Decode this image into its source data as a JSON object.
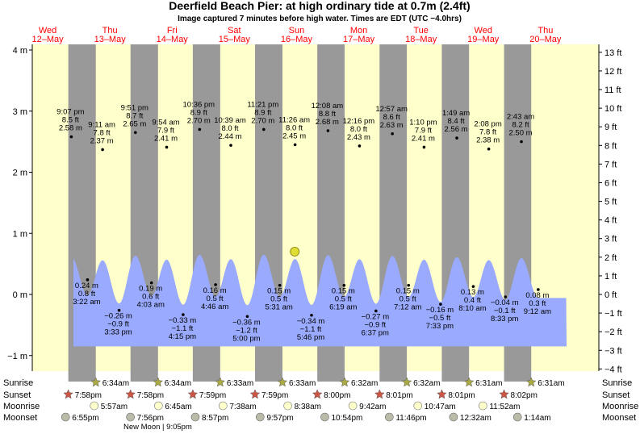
{
  "chart_data": {
    "type": "area",
    "title": "Deerfield Beach Pier: at high  ordinary tide at 0.7m (2.4ft)",
    "subtitle": "Image captured 7 minutes before high water. Times are EDT (UTC −4.0hrs)",
    "days": [
      {
        "dow": "Wed",
        "date": "12–May"
      },
      {
        "dow": "Thu",
        "date": "13–May"
      },
      {
        "dow": "Fri",
        "date": "14–May"
      },
      {
        "dow": "Sat",
        "date": "15–May"
      },
      {
        "dow": "Sun",
        "date": "16–May"
      },
      {
        "dow": "Mon",
        "date": "17–May"
      },
      {
        "dow": "Tue",
        "date": "18–May"
      },
      {
        "dow": "Wed",
        "date": "19–May"
      },
      {
        "dow": "Thu",
        "date": "20–May"
      }
    ],
    "y_left": {
      "unit": "m",
      "min": -1.2,
      "max": 4.0,
      "ticks": [
        "−1 m",
        "0 m",
        "1 m",
        "2 m",
        "3 m",
        "4 m"
      ],
      "tick_values": [
        -1,
        0,
        1,
        2,
        3,
        4
      ]
    },
    "y_right": {
      "unit": "ft",
      "ticks": [
        "−4 ft",
        "−3 ft",
        "−2 ft",
        "−1 ft",
        "0 ft",
        "1 ft",
        "2 ft",
        "3 ft",
        "4 ft",
        "5 ft",
        "6 ft",
        "7 ft",
        "8 ft",
        "9 ft",
        "10 ft",
        "11 ft",
        "12 ft",
        "13 ft"
      ],
      "tick_values": [
        -4,
        -3,
        -2,
        -1,
        0,
        1,
        2,
        3,
        4,
        5,
        6,
        7,
        8,
        9,
        10,
        11,
        12,
        13
      ]
    },
    "big_tides": [
      {
        "time": "9:07 pm",
        "ft": "8.5 ft",
        "m": "2.58 m",
        "day": 0,
        "hour": 21.12,
        "value": 2.58
      },
      {
        "time": "9:11 am",
        "ft": "7.8 ft",
        "m": "2.37 m",
        "day": 1,
        "hour": 9.18,
        "value": 2.37
      },
      {
        "time": "9:51 pm",
        "ft": "8.7 ft",
        "m": "2.65 m",
        "day": 1,
        "hour": 21.85,
        "value": 2.65
      },
      {
        "time": "9:54 am",
        "ft": "7.9 ft",
        "m": "2.41 m",
        "day": 2,
        "hour": 9.9,
        "value": 2.41
      },
      {
        "time": "10:36 pm",
        "ft": "8.9 ft",
        "m": "2.70 m",
        "day": 2,
        "hour": 22.6,
        "value": 2.7
      },
      {
        "time": "10:39 am",
        "ft": "8.0 ft",
        "m": "2.44 m",
        "day": 3,
        "hour": 10.65,
        "value": 2.44
      },
      {
        "time": "11:21 pm",
        "ft": "8.9 ft",
        "m": "2.70 m",
        "day": 3,
        "hour": 23.35,
        "value": 2.7
      },
      {
        "time": "11:26 am",
        "ft": "8.0 ft",
        "m": "2.45 m",
        "day": 4,
        "hour": 11.43,
        "value": 2.45
      },
      {
        "time": "12:08 am",
        "ft": "8.8 ft",
        "m": "2.68 m",
        "day": 5,
        "hour": 0.13,
        "value": 2.68
      },
      {
        "time": "12:16 pm",
        "ft": "8.0 ft",
        "m": "2.43 m",
        "day": 5,
        "hour": 12.27,
        "value": 2.43
      },
      {
        "time": "12:57 am",
        "ft": "8.6 ft",
        "m": "2.63 m",
        "day": 6,
        "hour": 0.95,
        "value": 2.63
      },
      {
        "time": "1:10 pm",
        "ft": "7.9 ft",
        "m": "2.41 m",
        "day": 6,
        "hour": 13.17,
        "value": 2.41
      },
      {
        "time": "1:49 am",
        "ft": "8.4 ft",
        "m": "2.56 m",
        "day": 7,
        "hour": 1.82,
        "value": 2.56
      },
      {
        "time": "2:08 pm",
        "ft": "7.8 ft",
        "m": "2.38 m",
        "day": 7,
        "hour": 14.13,
        "value": 2.38
      },
      {
        "time": "2:43 am",
        "ft": "8.2 ft",
        "m": "2.50 m",
        "day": 8,
        "hour": 2.72,
        "value": 2.5
      }
    ],
    "small_tides": [
      {
        "m": "0.24 m",
        "ft": "0.8 ft",
        "time": "3:22 am",
        "day": 1,
        "hour": 3.37,
        "value": 0.24
      },
      {
        "m": "−0.26 m",
        "ft": "−0.9 ft",
        "time": "3:33 pm",
        "day": 1,
        "hour": 15.55,
        "value": -0.26
      },
      {
        "m": "0.19 m",
        "ft": "0.6 ft",
        "time": "4:03 am",
        "day": 2,
        "hour": 4.05,
        "value": 0.19
      },
      {
        "m": "−0.33 m",
        "ft": "−1.1 ft",
        "time": "4:15 pm",
        "day": 2,
        "hour": 16.25,
        "value": -0.33
      },
      {
        "m": "0.16 m",
        "ft": "0.5 ft",
        "time": "4:46 am",
        "day": 3,
        "hour": 4.77,
        "value": 0.16
      },
      {
        "m": "−0.36 m",
        "ft": "−1.2 ft",
        "time": "5:00 pm",
        "day": 3,
        "hour": 17.0,
        "value": -0.36
      },
      {
        "m": "0.15 m",
        "ft": "0.5 ft",
        "time": "5:31 am",
        "day": 4,
        "hour": 5.52,
        "value": 0.15
      },
      {
        "m": "−0.34 m",
        "ft": "−1.1 ft",
        "time": "5:46 pm",
        "day": 4,
        "hour": 17.77,
        "value": -0.34
      },
      {
        "m": "0.15 m",
        "ft": "0.5 ft",
        "time": "6:19 am",
        "day": 5,
        "hour": 6.32,
        "value": 0.15
      },
      {
        "m": "−0.27 m",
        "ft": "−0.9 ft",
        "time": "6:37 pm",
        "day": 5,
        "hour": 18.62,
        "value": -0.27
      },
      {
        "m": "0.15 m",
        "ft": "0.5 ft",
        "time": "7:12 am",
        "day": 6,
        "hour": 7.2,
        "value": 0.15
      },
      {
        "m": "−0.16 m",
        "ft": "−0.5 ft",
        "time": "7:33 pm",
        "day": 6,
        "hour": 19.55,
        "value": -0.16
      },
      {
        "m": "0.13 m",
        "ft": "0.4 ft",
        "time": "8:10 am",
        "day": 7,
        "hour": 8.17,
        "value": 0.13
      },
      {
        "m": "−0.04 m",
        "ft": "−0.1 ft",
        "time": "8:33 pm",
        "day": 7,
        "hour": 20.55,
        "value": -0.04
      },
      {
        "m": "0.08 m",
        "ft": "0.3 ft",
        "time": "9:12 am",
        "day": 8,
        "hour": 9.2,
        "value": 0.08
      }
    ],
    "current_marker": {
      "day": 4,
      "hour": 11.3,
      "value": 0.7
    },
    "sunrise_label": "Sunrise",
    "sunset_label": "Sunset",
    "moonrise_label": "Moonrise",
    "moonset_label": "Moonset",
    "sunrise": [
      {
        "time": "6:34am",
        "day": 1
      },
      {
        "time": "6:34am",
        "day": 2
      },
      {
        "time": "6:33am",
        "day": 3
      },
      {
        "time": "6:33am",
        "day": 4
      },
      {
        "time": "6:32am",
        "day": 5
      },
      {
        "time": "6:32am",
        "day": 6
      },
      {
        "time": "6:31am",
        "day": 7
      },
      {
        "time": "6:31am",
        "day": 8
      }
    ],
    "sunset": [
      {
        "time": "7:58pm",
        "day": 0
      },
      {
        "time": "7:58pm",
        "day": 1
      },
      {
        "time": "7:59pm",
        "day": 2
      },
      {
        "time": "7:59pm",
        "day": 3
      },
      {
        "time": "8:00pm",
        "day": 4
      },
      {
        "time": "8:01pm",
        "day": 5
      },
      {
        "time": "8:01pm",
        "day": 6
      },
      {
        "time": "8:02pm",
        "day": 7
      }
    ],
    "moonrise": [
      {
        "time": "5:57am",
        "day": 1
      },
      {
        "time": "6:45am",
        "day": 2
      },
      {
        "time": "7:38am",
        "day": 3
      },
      {
        "time": "8:38am",
        "day": 4
      },
      {
        "time": "9:42am",
        "day": 5
      },
      {
        "time": "10:47am",
        "day": 6
      },
      {
        "time": "11:52am",
        "day": 7
      }
    ],
    "moonset": [
      {
        "time": "6:55pm",
        "day": 0
      },
      {
        "time": "7:56pm",
        "day": 1
      },
      {
        "time": "8:57pm",
        "day": 2
      },
      {
        "time": "9:57pm",
        "day": 3
      },
      {
        "time": "10:54pm",
        "day": 4
      },
      {
        "time": "11:46pm",
        "day": 5
      },
      {
        "time": "12:32am",
        "day": 7
      },
      {
        "time": "1:14am",
        "day": 8
      }
    ],
    "moon_phase_note": "New Moon | 9:05pm",
    "colors": {
      "day_band": "#ffffcc",
      "night_band": "#999999",
      "water": "#99aaff",
      "title": "#000000",
      "date_label": "#ff0000",
      "sunset_star": "#cc5544",
      "sunrise_star": "#aaaa44",
      "moonrise": "#ffffcc",
      "moonset": "#bbbbaa",
      "current_marker": "#dddd33"
    }
  }
}
